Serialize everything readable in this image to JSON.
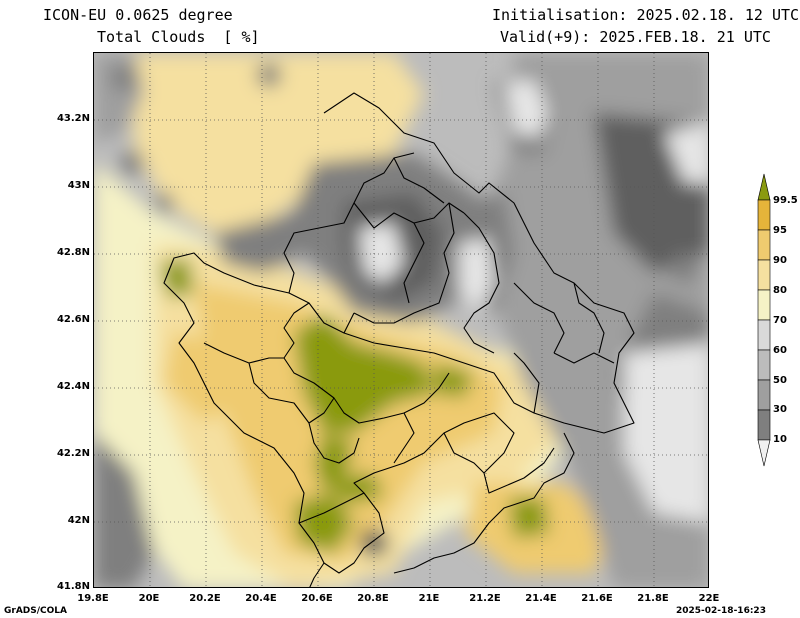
{
  "header": {
    "model": "ICON-EU 0.0625 degree",
    "field": "Total Clouds  [ %]",
    "init": "Initialisation: 2025.02.18. 12 UTC",
    "valid": "Valid(+9): 2025.FEB.18. 21 UTC"
  },
  "axes": {
    "lat_labels": [
      "43.2N",
      "43N",
      "42.8N",
      "42.6N",
      "42.4N",
      "42.2N",
      "42N",
      "41.8N"
    ],
    "lon_labels": [
      "19.8E",
      "20E",
      "20.2E",
      "20.4E",
      "20.6E",
      "20.8E",
      "21E",
      "21.2E",
      "21.4E",
      "21.6E",
      "21.8E",
      "22E"
    ]
  },
  "legend": {
    "levels": [
      "99.5",
      "95",
      "90",
      "80",
      "70",
      "60",
      "50",
      "30",
      "10"
    ],
    "colors": [
      "#f0f0f0",
      "#5f5f5f",
      "#7f7f7f",
      "#9f9f9f",
      "#bcbcbc",
      "#d9d9d9",
      "#f5f2c6",
      "#f5e0a0",
      "#efcb6f",
      "#e5b43a",
      "#8a9a10"
    ]
  },
  "footer": {
    "left": "GrADS/COLA",
    "right": "2025-02-18-16:23"
  }
}
